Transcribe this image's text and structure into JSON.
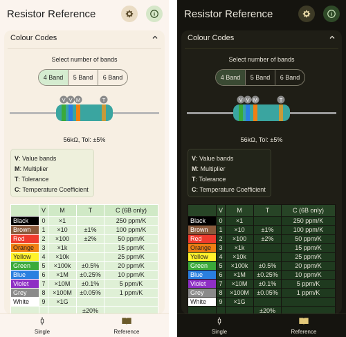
{
  "app_title": "Resistor Reference",
  "section_title": "Colour Codes",
  "band_prompt": "Select number of bands",
  "band_options": [
    "4 Band",
    "5 Band",
    "6 Band"
  ],
  "selected_band": "4 Band",
  "band_markers": [
    "V",
    "V",
    "M",
    "T"
  ],
  "resistor_value": "56kΩ, Tol: ±5%",
  "legend": [
    {
      "key": "V",
      "desc": ": Value bands"
    },
    {
      "key": "M",
      "desc": ": Multiplier"
    },
    {
      "key": "T",
      "desc": ": Tolerance"
    },
    {
      "key": "C",
      "desc": ": Temperature Coefficient"
    }
  ],
  "table_headers": [
    "",
    "V",
    "M",
    "T",
    "C (6B only)"
  ],
  "table_rows": [
    {
      "name": "Black",
      "v": "0",
      "m": "×1",
      "t": "",
      "c": "250 ppm/K",
      "color": "#000000",
      "text": "#ffffff"
    },
    {
      "name": "Brown",
      "v": "1",
      "m": "×10",
      "t": "±1%",
      "c": "100 ppm/K",
      "color": "#8a5a3c",
      "text": "#ffffff"
    },
    {
      "name": "Red",
      "v": "2",
      "m": "×100",
      "t": "±2%",
      "c": "50 ppm/K",
      "color": "#ef3b2e",
      "text": "#ffffff"
    },
    {
      "name": "Orange",
      "v": "3",
      "m": "×1k",
      "t": "",
      "c": "15 ppm/K",
      "color": "#f07f12",
      "text": "#222222"
    },
    {
      "name": "Yellow",
      "v": "4",
      "m": "×10k",
      "t": "",
      "c": "25 ppm/K",
      "color": "#fff32b",
      "text": "#222222"
    },
    {
      "name": "Green",
      "v": "5",
      "m": "×100k",
      "t": "±0.5%",
      "c": "20 ppm/K",
      "color": "#3aaa3a",
      "text": "#ffffff"
    },
    {
      "name": "Blue",
      "v": "6",
      "m": "×1M",
      "t": "±0.25%",
      "c": "10 ppm/K",
      "color": "#2a7fe0",
      "text": "#ffffff"
    },
    {
      "name": "Violet",
      "v": "7",
      "m": "×10M",
      "t": "±0.1%",
      "c": "5 ppm/K",
      "color": "#8e2fc4",
      "text": "#ffffff"
    },
    {
      "name": "Grey",
      "v": "8",
      "m": "×100M",
      "t": "±0.05%",
      "c": "1 ppm/K",
      "color": "#8a8a8a",
      "text": "#ffffff"
    },
    {
      "name": "White",
      "v": "9",
      "m": "×1G",
      "t": "",
      "c": "",
      "color": "#ffffff",
      "text": "#222222"
    },
    {
      "name": "",
      "v": "",
      "m": "",
      "t": "±20%",
      "c": "",
      "color": "",
      "text": ""
    }
  ],
  "nav": {
    "single": "Single",
    "reference": "Reference"
  },
  "icons": {
    "settings": "gear-icon",
    "info": "info-icon",
    "collapse": "chevron-up-icon",
    "single": "resistor-icon",
    "reference": "book-icon"
  },
  "colors": {
    "accent_green": "#d5ecd0",
    "resistor_body": "#3aa5a0"
  }
}
